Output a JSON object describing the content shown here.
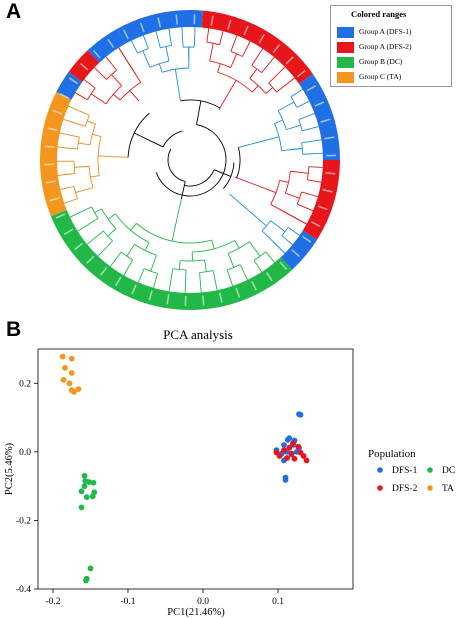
{
  "panelA": {
    "label": "A",
    "legend": {
      "title": "Colored ranges",
      "items": [
        {
          "label": "Group A (DFS-1)",
          "color": "#1f6fe5"
        },
        {
          "label": "Group A (DFS-2)",
          "color": "#e8161b"
        },
        {
          "label": "Group B (DC)",
          "color": "#22b848"
        },
        {
          "label": "Group C (TA)",
          "color": "#f4961e"
        }
      ]
    },
    "tree_branch_colors": {
      "DFS-1": "#1f8fd6",
      "DFS-2": "#e8161b",
      "DC": "#22b848",
      "TA": "#e98a1a",
      "root": "#000000"
    }
  },
  "panelB": {
    "label": "B",
    "chart_data": {
      "type": "scatter",
      "title": "PCA analysis",
      "xlabel": "PC1(21.46%)",
      "ylabel": "PC2(5.46%)",
      "xlim": [
        -0.22,
        0.2
      ],
      "ylim": [
        -0.4,
        0.3
      ],
      "xticks": [
        -0.2,
        -0.1,
        0.0,
        0.1
      ],
      "xticklabels": [
        "-0.2",
        "-0.1",
        "0.0",
        "0.1"
      ],
      "yticks": [
        -0.4,
        -0.2,
        0.0,
        0.2
      ],
      "yticklabels": [
        "-0.4",
        "-0.2",
        "0.0",
        "0.2"
      ],
      "grid": false,
      "legend_title": "Population",
      "legend_position": "right",
      "series": [
        {
          "name": "DFS-1",
          "color": "#1f6fe5",
          "points": [
            [
              0.128,
              0.11
            ],
            [
              0.13,
              0.108
            ],
            [
              0.113,
              0.035
            ],
            [
              0.115,
              0.04
            ],
            [
              0.122,
              0.033
            ],
            [
              0.108,
              0.02
            ],
            [
              0.12,
              0.02
            ],
            [
              0.128,
              0.012
            ],
            [
              0.098,
              0.005
            ],
            [
              0.105,
              -0.005
            ],
            [
              0.112,
              0.0
            ],
            [
              0.118,
              -0.008
            ],
            [
              0.125,
              0.0
            ],
            [
              0.108,
              -0.025
            ],
            [
              0.11,
              -0.075
            ],
            [
              0.11,
              -0.082
            ]
          ]
        },
        {
          "name": "DFS-2",
          "color": "#e8161b",
          "points": [
            [
              0.098,
              -0.002
            ],
            [
              0.102,
              -0.012
            ],
            [
              0.108,
              0.005
            ],
            [
              0.112,
              -0.018
            ],
            [
              0.115,
              0.012
            ],
            [
              0.118,
              -0.005
            ],
            [
              0.122,
              -0.02
            ],
            [
              0.127,
              0.015
            ],
            [
              0.13,
              -0.002
            ],
            [
              0.134,
              -0.012
            ],
            [
              0.138,
              -0.025
            ],
            [
              0.12,
              0.025
            ]
          ]
        },
        {
          "name": "DC",
          "color": "#22b848",
          "points": [
            [
              -0.158,
              -0.07
            ],
            [
              -0.152,
              -0.088
            ],
            [
              -0.146,
              -0.09
            ],
            [
              -0.158,
              -0.1
            ],
            [
              -0.162,
              -0.115
            ],
            [
              -0.145,
              -0.118
            ],
            [
              -0.147,
              -0.13
            ],
            [
              -0.155,
              -0.132
            ],
            [
              -0.162,
              -0.162
            ],
            [
              -0.157,
              -0.085
            ],
            [
              -0.15,
              -0.34
            ],
            [
              -0.155,
              -0.37
            ],
            [
              -0.156,
              -0.375
            ]
          ]
        },
        {
          "name": "TA",
          "color": "#f4961e",
          "points": [
            [
              -0.187,
              0.278
            ],
            [
              -0.175,
              0.272
            ],
            [
              -0.184,
              0.245
            ],
            [
              -0.175,
              0.23
            ],
            [
              -0.186,
              0.21
            ],
            [
              -0.178,
              0.2
            ],
            [
              -0.166,
              0.183
            ],
            [
              -0.175,
              0.18
            ],
            [
              -0.172,
              0.175
            ]
          ]
        }
      ]
    }
  }
}
